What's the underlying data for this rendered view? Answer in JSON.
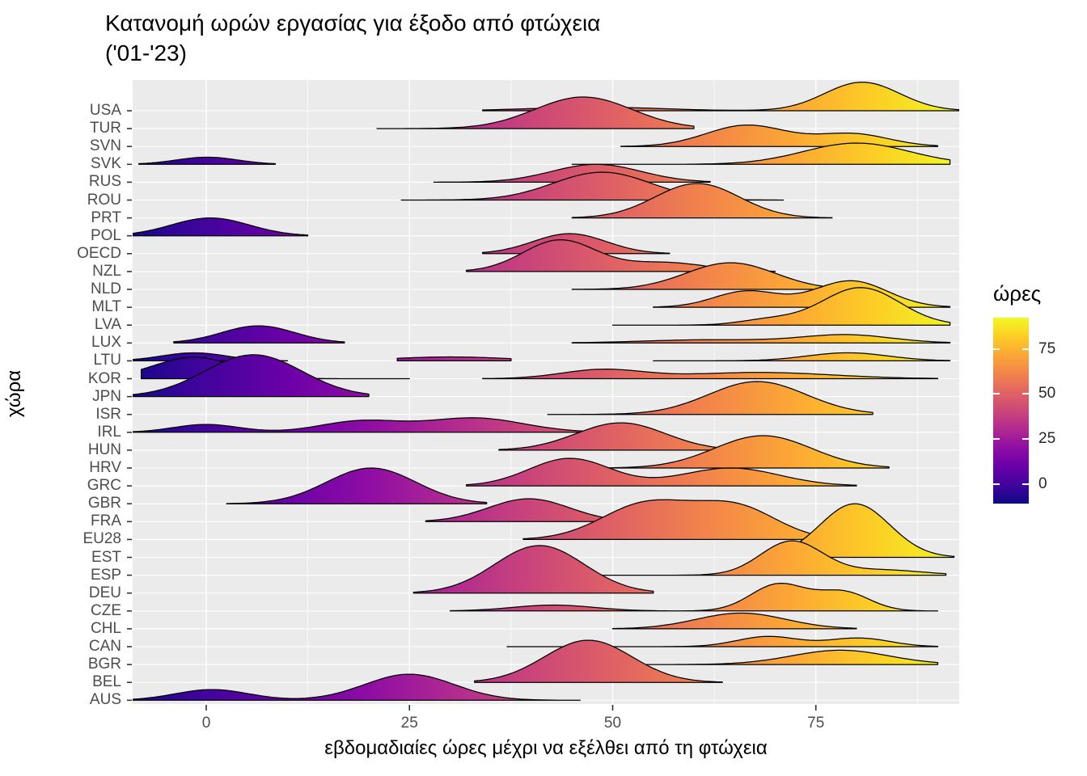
{
  "title": {
    "line1": "Κατανομή ωρών εργασίας για έξοδο από φτώχεια",
    "line2": "('01-'23)"
  },
  "axes": {
    "x_label": "εβδομαδιαίες ώρες μέχρι να εξέλθει από τη φτώχεια",
    "y_label": "χώρα",
    "x_tick_labels": [
      "0",
      "25",
      "50",
      "75"
    ],
    "x_tick_values": [
      0,
      25,
      50,
      75
    ]
  },
  "legend": {
    "title": "ώρες",
    "tick_labels": [
      "75",
      "50",
      "25",
      "0"
    ],
    "tick_values": [
      75,
      50,
      25,
      0
    ]
  },
  "colors": {
    "panel_background": "#EBEBEB",
    "gridline": "#FFFFFF",
    "ridge_stroke": "#000000",
    "tick_mark": "#333333",
    "tick_label": "#4D4D4D",
    "text": "#000000",
    "plasma_stops": [
      "#0d0887",
      "#41049d",
      "#6a00a8",
      "#8f0da4",
      "#b12a90",
      "#cc4778",
      "#e16462",
      "#f2844b",
      "#fca636",
      "#fcce25",
      "#f0f921"
    ]
  },
  "chart_data": {
    "type": "ridgeline",
    "title": "Κατανομή ωρών εργασίας για έξοδο από φτώχεια ('01-'23)",
    "xlabel": "εβδομαδιαίες ώρες μέχρι να εξέλθει από τη φτώχεια",
    "ylabel": "χώρα",
    "x_ticks": [
      0,
      25,
      50,
      75
    ],
    "x_domain": [
      -11,
      92.5
    ],
    "fill_mapping": "plasma colormap of weekly hours (x value), legend 0-75",
    "height_units": "row spacing = 1",
    "countries": [
      {
        "name": "USA",
        "segments": [
          {
            "range": [
              34,
              93
            ],
            "bumps": [
              [
                48,
                0.2,
                8
              ],
              [
                80.7,
                1.6,
                4.6
              ]
            ]
          }
        ]
      },
      {
        "name": "TUR",
        "segments": [
          {
            "range": [
              21,
              60
            ],
            "bumps": [
              [
                46.4,
                1.77,
                6
              ]
            ]
          }
        ]
      },
      {
        "name": "SVN",
        "segments": [
          {
            "range": [
              51,
              90
            ],
            "bumps": [
              [
                66.5,
                1.19,
                5
              ],
              [
                79.5,
                0.7,
                4.5
              ]
            ]
          }
        ]
      },
      {
        "name": "SVK",
        "segments": [
          {
            "range": [
              -8.3,
              8.5
            ],
            "bumps": [
              [
                0.1,
                0.4,
                3.8
              ]
            ]
          },
          {
            "range": [
              45,
              91.5
            ],
            "bumps": [
              [
                80,
                1.19,
                6.5
              ]
            ]
          }
        ]
      },
      {
        "name": "RUS",
        "segments": [
          {
            "range": [
              28,
              62
            ],
            "bumps": [
              [
                48,
                1.0,
                5.5
              ]
            ]
          }
        ]
      },
      {
        "name": "ROU",
        "segments": [
          {
            "range": [
              24,
              71
            ],
            "bumps": [
              [
                48.7,
                1.56,
                6
              ]
            ]
          }
        ]
      },
      {
        "name": "PRT",
        "segments": [
          {
            "range": [
              45,
              77
            ],
            "bumps": [
              [
                60.4,
                1.93,
                5.2
              ]
            ]
          }
        ]
      },
      {
        "name": "POL",
        "segments": [
          {
            "range": [
              -9.5,
              12.5
            ],
            "bumps": [
              [
                0.5,
                1.0,
                4.8
              ]
            ]
          }
        ]
      },
      {
        "name": "OECD",
        "segments": [
          {
            "range": [
              34,
              57
            ],
            "bumps": [
              [
                44.7,
                1.12,
                4.5
              ]
            ]
          }
        ]
      },
      {
        "name": "NZL",
        "segments": [
          {
            "range": [
              32,
              70
            ],
            "bumps": [
              [
                43.5,
                1.76,
                4.5
              ],
              [
                56.5,
                0.5,
                5
              ]
            ]
          }
        ]
      },
      {
        "name": "NLD",
        "segments": [
          {
            "range": [
              45,
              81
            ],
            "bumps": [
              [
                64.5,
                1.49,
                5.5
              ]
            ]
          }
        ]
      },
      {
        "name": "MLT",
        "segments": [
          {
            "range": [
              55,
              91.5
            ],
            "bumps": [
              [
                66.5,
                0.9,
                4
              ],
              [
                79.3,
                1.48,
                4.5
              ]
            ]
          }
        ]
      },
      {
        "name": "LVA",
        "segments": [
          {
            "range": [
              50,
              91.5
            ],
            "bumps": [
              [
                69.2,
                0.3,
                3.5
              ],
              [
                80.5,
                2.1,
                4.8
              ]
            ]
          }
        ]
      },
      {
        "name": "LUX",
        "segments": [
          {
            "range": [
              -4,
              17
            ],
            "bumps": [
              [
                6.4,
                0.96,
                4.5
              ]
            ]
          },
          {
            "range": [
              45,
              91.5
            ],
            "bumps": [
              [
                62,
                0.18,
                8
              ],
              [
                78.8,
                0.45,
                5.5
              ]
            ]
          }
        ]
      },
      {
        "name": "LTU",
        "segments": [
          {
            "range": [
              -9.5,
              10
            ],
            "bumps": [
              [
                -1.5,
                0.45,
                4
              ]
            ]
          },
          {
            "range": [
              23.5,
              37.5
            ],
            "bumps": [
              [
                30,
                0.22,
                7
              ]
            ]
          },
          {
            "range": [
              55,
              91.5
            ],
            "bumps": [
              [
                78.9,
                0.45,
                5
              ]
            ]
          }
        ]
      },
      {
        "name": "KOR",
        "segments": [
          {
            "range": [
              -8,
              25
            ],
            "bumps": [
              [
                -1.5,
                1.2,
                5
              ]
            ]
          },
          {
            "range": [
              34,
              90
            ],
            "bumps": [
              [
                48.7,
                0.5,
                5
              ],
              [
                68,
                0.35,
                9
              ]
            ]
          }
        ]
      },
      {
        "name": "JPN",
        "segments": [
          {
            "range": [
              -9.7,
              20
            ],
            "bumps": [
              [
                5.8,
                2.34,
                6
              ]
            ]
          }
        ]
      },
      {
        "name": "ISR",
        "segments": [
          {
            "range": [
              42,
              82
            ],
            "bumps": [
              [
                67.8,
                1.84,
                6
              ]
            ]
          }
        ]
      },
      {
        "name": "IRL",
        "segments": [
          {
            "range": [
              -9.7,
              47
            ],
            "bumps": [
              [
                0,
                0.44,
                4
              ],
              [
                19,
                0.62,
                5
              ],
              [
                33,
                0.8,
                6
              ]
            ]
          }
        ]
      },
      {
        "name": "HUN",
        "segments": [
          {
            "range": [
              36,
              65
            ],
            "bumps": [
              [
                51,
                1.53,
                5.5
              ]
            ]
          }
        ]
      },
      {
        "name": "HRV",
        "segments": [
          {
            "range": [
              44,
              84
            ],
            "bumps": [
              [
                68.5,
                1.81,
                6
              ]
            ]
          }
        ]
      },
      {
        "name": "GRC",
        "segments": [
          {
            "range": [
              32,
              80
            ],
            "bumps": [
              [
                44.7,
                1.54,
                5
              ],
              [
                64.5,
                1.0,
                6
              ]
            ]
          }
        ]
      },
      {
        "name": "GBR",
        "segments": [
          {
            "range": [
              2.5,
              34.5
            ],
            "bumps": [
              [
                20.3,
                2.0,
                5.5
              ]
            ]
          }
        ]
      },
      {
        "name": "FRA",
        "segments": [
          {
            "range": [
              27,
              54
            ],
            "bumps": [
              [
                39.7,
                1.28,
                5
              ]
            ]
          }
        ]
      },
      {
        "name": "EU28",
        "segments": [
          {
            "range": [
              39,
              76
            ],
            "bumps": [
              [
                54.2,
                2.0,
                5.5
              ],
              [
                65.2,
                1.78,
                5
              ]
            ]
          }
        ]
      },
      {
        "name": "EST",
        "segments": [
          {
            "range": [
              69,
              92
            ],
            "bumps": [
              [
                79.8,
                3.0,
                4.3
              ]
            ]
          }
        ]
      },
      {
        "name": "ESP",
        "segments": [
          {
            "range": [
              48,
              91
            ],
            "bumps": [
              [
                72,
                1.9,
                3.8
              ],
              [
                83,
                0.3,
                5
              ]
            ]
          }
        ]
      },
      {
        "name": "DEU",
        "segments": [
          {
            "range": [
              25.5,
              55
            ],
            "bumps": [
              [
                41,
                2.66,
                5.5
              ]
            ]
          }
        ]
      },
      {
        "name": "CZE",
        "segments": [
          {
            "range": [
              30,
              90
            ],
            "bumps": [
              [
                42.7,
                0.33,
                5
              ],
              [
                70.4,
                1.5,
                3.4
              ],
              [
                78.4,
                1.05,
                3.2
              ]
            ]
          }
        ]
      },
      {
        "name": "CHL",
        "segments": [
          {
            "range": [
              50,
              80
            ],
            "bumps": [
              [
                65.8,
                0.88,
                5.5
              ]
            ]
          }
        ]
      },
      {
        "name": "CAN",
        "segments": [
          {
            "range": [
              37,
              90
            ],
            "bumps": [
              [
                69.1,
                0.57,
                3.8
              ],
              [
                80.3,
                0.48,
                3.8
              ]
            ]
          }
        ]
      },
      {
        "name": "BGR",
        "segments": [
          {
            "range": [
              52,
              90
            ],
            "bumps": [
              [
                78,
                0.8,
                6
              ]
            ]
          }
        ]
      },
      {
        "name": "BEL",
        "segments": [
          {
            "range": [
              33,
              63.5
            ],
            "bumps": [
              [
                47,
                2.36,
                5.4
              ]
            ]
          }
        ]
      },
      {
        "name": "AUS",
        "segments": [
          {
            "range": [
              -9.7,
              46
            ],
            "bumps": [
              [
                0.7,
                0.6,
                4.5
              ],
              [
                25,
                1.46,
                5.5
              ]
            ]
          }
        ]
      }
    ]
  }
}
